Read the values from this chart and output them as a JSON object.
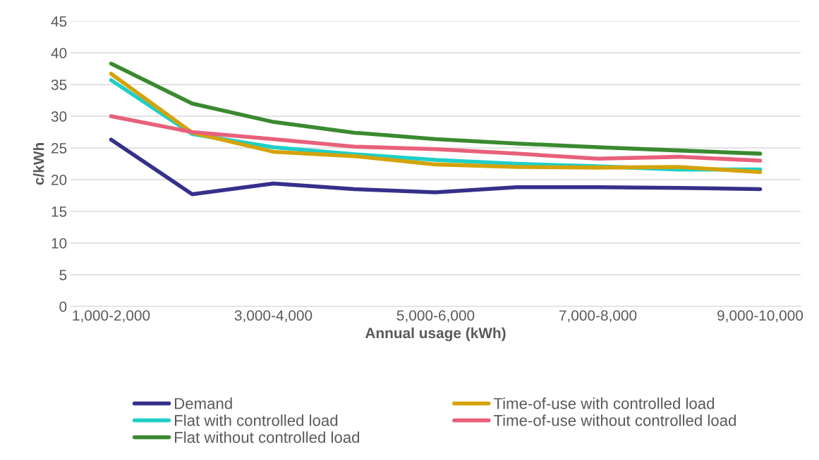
{
  "chart_data": {
    "type": "line",
    "xlabel": "Annual usage (kWh)",
    "ylabel": "c/kWh",
    "categories": [
      "1,000-2,000",
      null,
      "3,000-4,000",
      null,
      "5,000-6,000",
      null,
      "7,000-8,000",
      null,
      "9,000-10,000"
    ],
    "series": [
      {
        "name": "Demand",
        "color": "#35308a",
        "values": [
          26.3,
          17.7,
          19.4,
          18.5,
          18.0,
          18.8,
          18.8,
          18.7,
          18.5
        ]
      },
      {
        "name": "Flat with controlled load",
        "color": "#1fcfc8",
        "values": [
          35.7,
          27.2,
          25.1,
          24.0,
          23.1,
          22.5,
          22.1,
          21.6,
          21.6
        ]
      },
      {
        "name": "Flat without controlled load",
        "color": "#3a8a30",
        "values": [
          38.3,
          32.0,
          29.1,
          27.4,
          26.4,
          25.7,
          25.1,
          24.6,
          24.1
        ]
      },
      {
        "name": "Time-of-use with controlled load",
        "color": "#d4a30a",
        "values": [
          36.7,
          27.4,
          24.4,
          23.7,
          22.4,
          22.0,
          21.9,
          22.0,
          21.2
        ]
      },
      {
        "name": "Time-of-use without controlled load",
        "color": "#e8607a",
        "values": [
          30.0,
          27.5,
          26.4,
          25.2,
          24.8,
          24.1,
          23.3,
          23.6,
          23.0
        ]
      }
    ],
    "ylim": [
      0,
      45
    ],
    "yticks": [
      0,
      5,
      10,
      15,
      20,
      25,
      30,
      35,
      40,
      45
    ],
    "grid": "y",
    "legend": "bottom",
    "marker": "none",
    "line_style": "solid"
  }
}
